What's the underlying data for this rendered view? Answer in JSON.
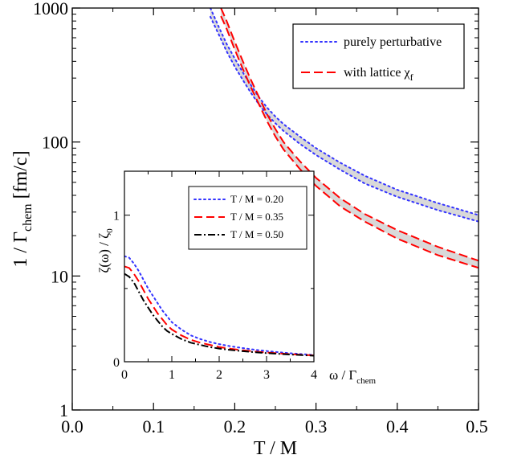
{
  "chart_data": [
    {
      "type": "line",
      "xlabel": "T / M",
      "ylabel": "1 / Γ",
      "ylabel_sub": "chem",
      "ylabel_unit": "[fm/c]",
      "xlim": [
        0.0,
        0.5
      ],
      "ylim": [
        1,
        1000
      ],
      "yscale": "log",
      "x_ticks": [
        {
          "v": 0.0,
          "label": "0.0"
        },
        {
          "v": 0.1,
          "label": "0.1"
        },
        {
          "v": 0.2,
          "label": "0.2"
        },
        {
          "v": 0.3,
          "label": "0.3"
        },
        {
          "v": 0.4,
          "label": "0.4"
        },
        {
          "v": 0.5,
          "label": "0.5"
        }
      ],
      "y_ticks": [
        {
          "v": 1,
          "label": "1"
        },
        {
          "v": 10,
          "label": "10"
        },
        {
          "v": 100,
          "label": "100"
        },
        {
          "v": 1000,
          "label": "1000"
        }
      ],
      "legend_position": "top-right",
      "series": [
        {
          "name": "purely perturbative",
          "color": "#3333ff",
          "style": "dotted",
          "band": true,
          "x": [
            0.17,
            0.18,
            0.19,
            0.2,
            0.21,
            0.22,
            0.23,
            0.24,
            0.25,
            0.26,
            0.28,
            0.3,
            0.33,
            0.36,
            0.4,
            0.45,
            0.5
          ],
          "upper": [
            1000,
            730,
            540,
            420,
            330,
            265,
            215,
            180,
            155,
            136,
            110,
            90,
            70,
            56,
            44,
            35,
            28.5
          ],
          "lower": [
            860,
            640,
            475,
            365,
            290,
            232,
            190,
            160,
            138,
            121,
            97,
            80,
            62,
            49,
            39,
            31,
            25.5
          ]
        },
        {
          "name": "with lattice χ",
          "name_sub": "f",
          "color": "#ff0000",
          "style": "dashed",
          "band": true,
          "x": [
            0.183,
            0.19,
            0.2,
            0.21,
            0.22,
            0.23,
            0.24,
            0.25,
            0.26,
            0.28,
            0.3,
            0.33,
            0.36,
            0.4,
            0.45,
            0.5
          ],
          "upper": [
            1000,
            800,
            560,
            400,
            290,
            215,
            160,
            125,
            100,
            72,
            54,
            38,
            29,
            22,
            16.5,
            13
          ],
          "lower": [
            870,
            700,
            490,
            350,
            255,
            190,
            142,
            110,
            88,
            63,
            47,
            33,
            25.5,
            19,
            14.3,
            11.5
          ]
        }
      ]
    },
    {
      "type": "line",
      "xlabel": "ω / Γ",
      "xlabel_sub": "chem",
      "ylabel": "ζ(ω) / ζ",
      "ylabel_sub": "0",
      "xlim": [
        0,
        4
      ],
      "ylim": [
        0,
        1.3
      ],
      "x_ticks": [
        {
          "v": 0,
          "label": "0"
        },
        {
          "v": 1,
          "label": "1"
        },
        {
          "v": 2,
          "label": "2"
        },
        {
          "v": 3,
          "label": "3"
        },
        {
          "v": 4,
          "label": "4"
        }
      ],
      "y_ticks": [
        {
          "v": 0,
          "label": "0"
        },
        {
          "v": 1,
          "label": "1"
        }
      ],
      "legend_position": "top-right",
      "series": [
        {
          "name": "T / M = 0.20",
          "color": "#3333ff",
          "style": "dotted",
          "x": [
            0,
            0.1,
            0.2,
            0.3,
            0.4,
            0.5,
            0.6,
            0.7,
            0.8,
            0.9,
            1.0,
            1.2,
            1.4,
            1.6,
            1.8,
            2.0,
            2.25,
            2.5,
            2.75,
            3.0,
            3.25,
            3.5,
            3.75,
            4.0
          ],
          "y": [
            0.72,
            0.71,
            0.67,
            0.62,
            0.56,
            0.5,
            0.45,
            0.4,
            0.35,
            0.31,
            0.27,
            0.22,
            0.18,
            0.155,
            0.135,
            0.12,
            0.105,
            0.093,
            0.082,
            0.073,
            0.065,
            0.058,
            0.052,
            0.046
          ]
        },
        {
          "name": "T / M = 0.35",
          "color": "#ff0000",
          "style": "dashed",
          "x": [
            0,
            0.1,
            0.2,
            0.3,
            0.4,
            0.5,
            0.6,
            0.7,
            0.8,
            0.9,
            1.0,
            1.2,
            1.4,
            1.6,
            1.8,
            2.0,
            2.25,
            2.5,
            2.75,
            3.0,
            3.25,
            3.5,
            3.75,
            4.0
          ],
          "y": [
            0.65,
            0.64,
            0.6,
            0.55,
            0.49,
            0.43,
            0.38,
            0.33,
            0.29,
            0.25,
            0.22,
            0.18,
            0.15,
            0.13,
            0.115,
            0.1,
            0.088,
            0.078,
            0.07,
            0.063,
            0.057,
            0.052,
            0.047,
            0.043
          ]
        },
        {
          "name": "T / M = 0.50",
          "color": "#000000",
          "style": "dashdot",
          "x": [
            0,
            0.1,
            0.2,
            0.3,
            0.4,
            0.5,
            0.6,
            0.7,
            0.8,
            0.9,
            1.0,
            1.2,
            1.4,
            1.6,
            1.8,
            2.0,
            2.25,
            2.5,
            2.75,
            3.0,
            3.25,
            3.5,
            3.75,
            4.0
          ],
          "y": [
            0.6,
            0.58,
            0.54,
            0.48,
            0.42,
            0.37,
            0.32,
            0.28,
            0.24,
            0.21,
            0.19,
            0.155,
            0.13,
            0.115,
            0.1,
            0.09,
            0.08,
            0.072,
            0.065,
            0.059,
            0.054,
            0.049,
            0.045,
            0.041
          ]
        }
      ]
    }
  ]
}
